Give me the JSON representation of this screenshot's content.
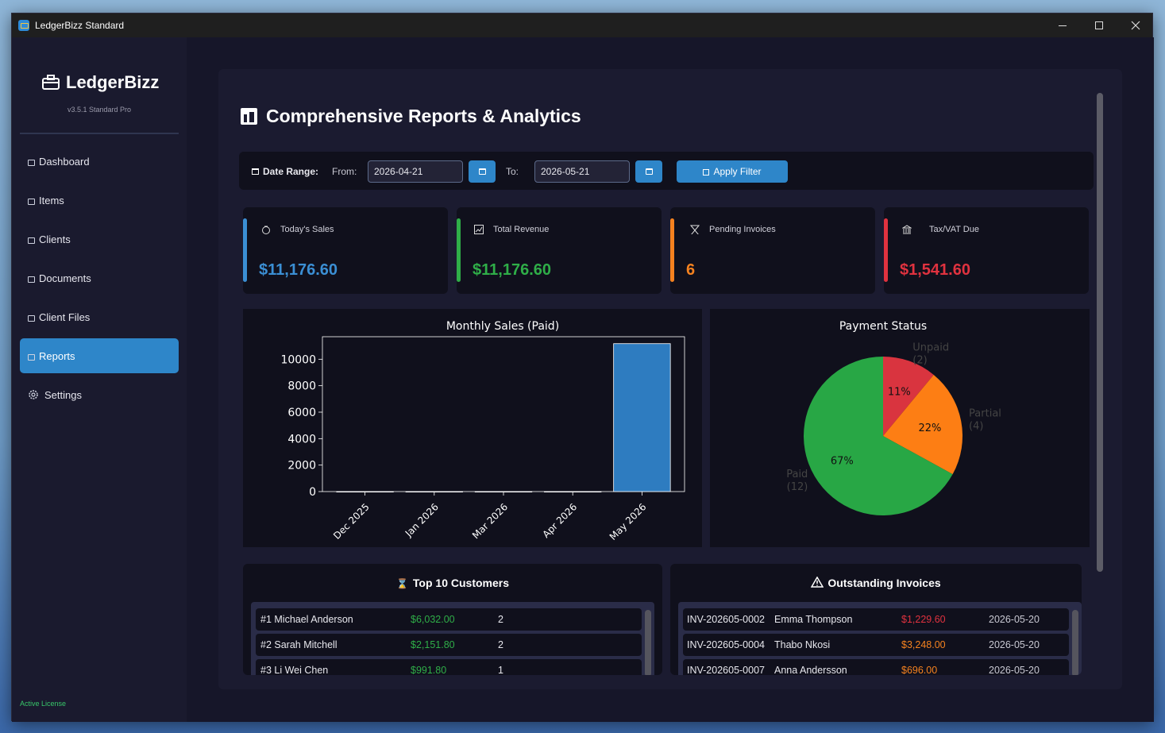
{
  "window": {
    "title": "LedgerBizz Standard",
    "controls": [
      "minimize",
      "maximize",
      "close"
    ]
  },
  "sidebar": {
    "brand": "LedgerBizz",
    "version": "v3.5.1 Standard Pro",
    "items": [
      {
        "label": "Dashboard",
        "icon": "dashboard-icon"
      },
      {
        "label": "Items",
        "icon": "items-icon"
      },
      {
        "label": "Clients",
        "icon": "clients-icon"
      },
      {
        "label": "Documents",
        "icon": "documents-icon"
      },
      {
        "label": "Client Files",
        "icon": "folder-icon"
      },
      {
        "label": "Reports",
        "icon": "reports-icon",
        "active": true
      },
      {
        "label": "Settings",
        "icon": "gear-icon"
      }
    ],
    "license": "Active License"
  },
  "page": {
    "title": "Comprehensive Reports & Analytics"
  },
  "filter": {
    "date_range_label": "Date Range:",
    "from_label": "From:",
    "from_value": "2026-04-21",
    "to_label": "To:",
    "to_value": "2026-05-21",
    "apply_label": "Apply Filter"
  },
  "cards": [
    {
      "label": "Today's Sales",
      "value": "$11,176.60",
      "color": "#3b8fd4"
    },
    {
      "label": "Total Revenue",
      "value": "$11,176.60",
      "color": "#2fae48"
    },
    {
      "label": "Pending Invoices",
      "value": "6",
      "color": "#f5821f"
    },
    {
      "label": "Tax/VAT Due",
      "value": "$1,541.60",
      "color": "#e0323f"
    }
  ],
  "chart_data": [
    {
      "type": "bar",
      "title": "Monthly Sales (Paid)",
      "categories": [
        "Dec 2025",
        "Jan 2026",
        "Mar 2026",
        "Apr 2026",
        "May 2026"
      ],
      "values": [
        0,
        0,
        0,
        0,
        11176.6
      ],
      "yticks": [
        "0",
        "2000",
        "4000",
        "6000",
        "8000",
        "10000"
      ],
      "ylim": [
        0,
        11700
      ],
      "color": "#2e7cc0"
    },
    {
      "type": "pie",
      "title": "Payment Status",
      "slices": [
        {
          "name": "Unpaid",
          "count": "(2)",
          "value": 11,
          "pct_label": "11%",
          "color": "#d9343f"
        },
        {
          "name": "Partial",
          "count": "(4)",
          "value": 22,
          "pct_label": "22%",
          "color": "#fd7e14"
        },
        {
          "name": "Paid",
          "count": "(12)",
          "value": 67,
          "pct_label": "67%",
          "color": "#28a745"
        }
      ]
    }
  ],
  "top_customers": {
    "title": "Top 10 Customers",
    "rows": [
      {
        "name": "#1 Michael Anderson",
        "amount": "$6,032.00",
        "count": "2"
      },
      {
        "name": "#2 Sarah Mitchell",
        "amount": "$2,151.80",
        "count": "2"
      },
      {
        "name": "#3 Li Wei Chen",
        "amount": "$991.80",
        "count": "1"
      }
    ]
  },
  "outstanding": {
    "title": "Outstanding Invoices",
    "rows": [
      {
        "invoice": "INV-202605-0002",
        "client": "Emma Thompson",
        "amount": "$1,229.60",
        "date": "2026-05-20",
        "color": "#e0323f"
      },
      {
        "invoice": "INV-202605-0004",
        "client": "Thabo Nkosi",
        "amount": "$3,248.00",
        "date": "2026-05-20",
        "color": "#f5821f"
      },
      {
        "invoice": "INV-202605-0007",
        "client": "Anna Andersson",
        "amount": "$696.00",
        "date": "2026-05-20",
        "color": "#f5821f"
      }
    ]
  },
  "colors": {
    "accent": "#2e86c9",
    "sidebar": "#1a1a2e",
    "card_bg": "#10101c",
    "green_text": "#2fae48"
  }
}
